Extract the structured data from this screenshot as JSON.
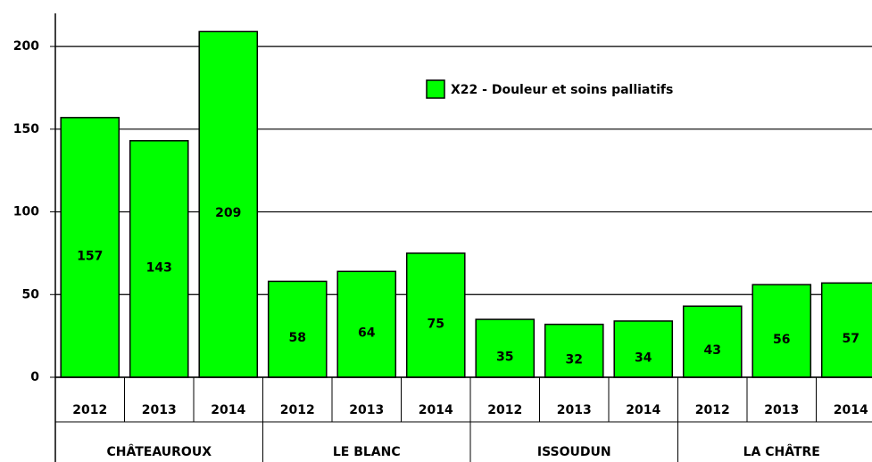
{
  "chart_data": {
    "type": "bar",
    "categories": [
      "2012",
      "2013",
      "2014",
      "2012",
      "2013",
      "2014",
      "2012",
      "2013",
      "2014",
      "2012",
      "2013",
      "2014"
    ],
    "groups": [
      "CHÂTEAUROUX",
      "LE BLANC",
      "ISSOUDUN",
      "LA CHÂTRE"
    ],
    "series": [
      {
        "name": "X22 - Douleur et soins palliatifs",
        "color": "#00ff00",
        "values": [
          157,
          143,
          209,
          58,
          64,
          75,
          35,
          32,
          34,
          43,
          56,
          57
        ]
      }
    ],
    "ylim": [
      0,
      220
    ],
    "yticks": [
      0,
      50,
      100,
      150,
      200
    ],
    "grid": true,
    "legend": "top-right"
  }
}
